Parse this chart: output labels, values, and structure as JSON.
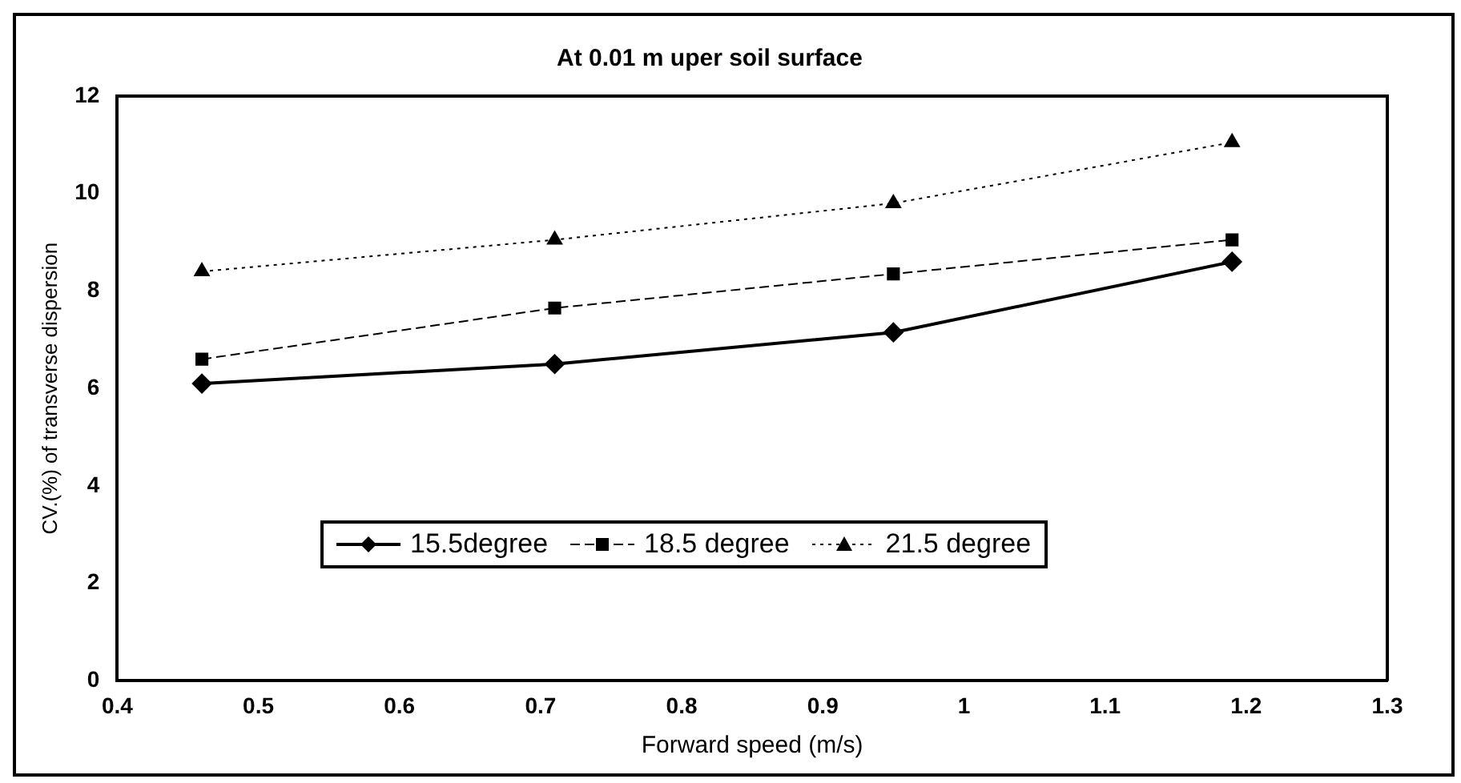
{
  "chart_data": {
    "type": "line",
    "title": "At 0.01 m uper soil surface",
    "xlabel": "Forward speed (m/s)",
    "ylabel": "CV.(%) of transverse dispersion",
    "xlim": [
      0.4,
      1.3
    ],
    "xticks": [
      0.4,
      0.5,
      0.6,
      0.7,
      0.8,
      0.9,
      1,
      1.1,
      1.2,
      1.3
    ],
    "ylim": [
      0,
      12
    ],
    "yticks": [
      0,
      2,
      4,
      6,
      8,
      10,
      12
    ],
    "grid": false,
    "legend": "bottom",
    "x": [
      0.46,
      0.71,
      0.95,
      1.19
    ],
    "series": [
      {
        "name": "15.5degree",
        "color": "#000000",
        "marker": "diamond",
        "line_style": "solid",
        "values": [
          6.1,
          6.5,
          7.15,
          8.6
        ]
      },
      {
        "name": "18.5 degree",
        "color": "#000000",
        "marker": "square",
        "line_style": "dashed",
        "values": [
          6.6,
          7.65,
          8.35,
          9.05
        ]
      },
      {
        "name": "21.5 degree",
        "color": "#000000",
        "marker": "triangle",
        "line_style": "dotted",
        "values": [
          8.4,
          9.05,
          9.8,
          11.05
        ]
      }
    ]
  }
}
